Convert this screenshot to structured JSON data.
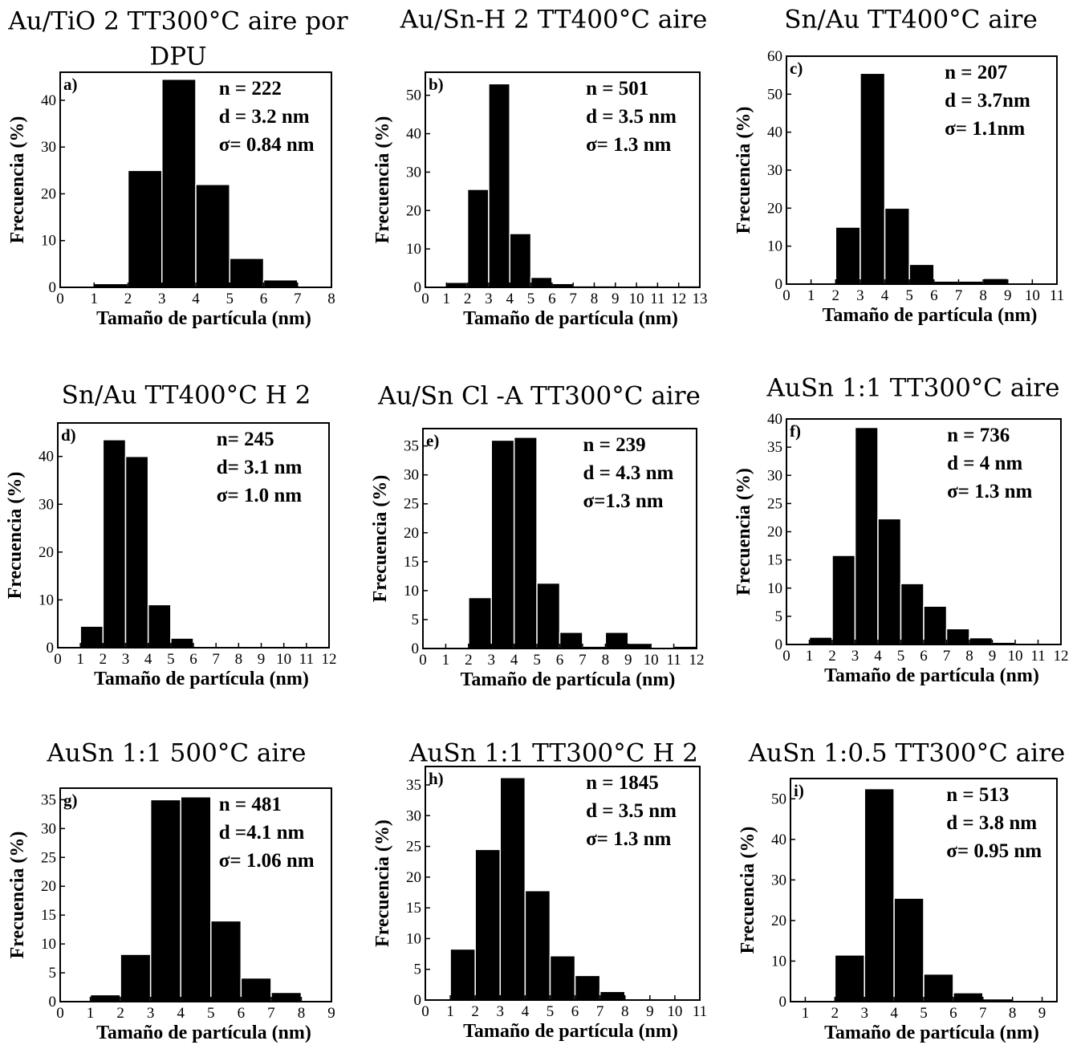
{
  "chart_data": [
    {
      "type": "bar",
      "title": "Au/TiO 2 TT300°C aire por DPU",
      "title_lines": [
        "Au/TiO 2 TT300°C aire por",
        "DPU"
      ],
      "panel": "a)",
      "stats": [
        "n = 222",
        "d = 3.2 nm",
        "σ= 0.84 nm"
      ],
      "xlabel": "Tamaño de partícula (nm)",
      "ylabel": "Frecuencia (%)",
      "xlim": [
        0,
        8
      ],
      "ylim": [
        0,
        46
      ],
      "xticks": [
        0,
        1,
        2,
        3,
        4,
        5,
        6,
        7,
        8
      ],
      "yticks": [
        0,
        10,
        20,
        30,
        40
      ],
      "x": [
        1.5,
        2.5,
        3.5,
        4.5,
        5.5,
        6.5
      ],
      "values": [
        0.8,
        25,
        44.5,
        22,
        6.2,
        1.6
      ]
    },
    {
      "type": "bar",
      "title": "Au/Sn-H 2 TT400°C aire",
      "title_lines": [
        "Au/Sn-H 2 TT400°C aire"
      ],
      "panel": "b)",
      "stats": [
        "n = 501",
        "d = 3.5 nm",
        "σ= 1.3 nm"
      ],
      "xlabel": "Tamaño de partícula (nm)",
      "ylabel": "Frecuencia (%)",
      "xlim": [
        0,
        13
      ],
      "ylim": [
        0,
        56
      ],
      "xticks": [
        0,
        1,
        2,
        3,
        4,
        5,
        6,
        7,
        8,
        9,
        10,
        11,
        12,
        13
      ],
      "yticks": [
        0,
        10,
        20,
        30,
        40,
        50
      ],
      "x": [
        1.5,
        2.5,
        3.5,
        4.5,
        5.5,
        6.5,
        7.5,
        8.5,
        9.5,
        10.5,
        11.5,
        12.5
      ],
      "values": [
        1.3,
        25.5,
        53,
        14,
        2.6,
        1,
        0.4,
        0.4,
        0.2,
        0.4,
        0.2,
        0.4
      ]
    },
    {
      "type": "bar",
      "title": "Sn/Au TT400°C aire",
      "title_lines": [
        "Sn/Au TT400°C aire"
      ],
      "panel": "c)",
      "stats": [
        "n = 207",
        "d = 3.7nm",
        "σ= 1.1nm"
      ],
      "xlabel": "Tamaño de partícula (nm)",
      "ylabel": "Frecuencia (%)",
      "xlim": [
        0,
        11
      ],
      "ylim": [
        0,
        60
      ],
      "xticks": [
        0,
        1,
        2,
        3,
        4,
        5,
        6,
        7,
        8,
        9,
        10,
        11
      ],
      "yticks": [
        0,
        10,
        20,
        30,
        40,
        50,
        60
      ],
      "x": [
        1.5,
        2.5,
        3.5,
        4.5,
        5.5,
        6.5,
        7.5,
        8.5,
        9.5
      ],
      "values": [
        0.3,
        15,
        55.5,
        20,
        5.2,
        0.8,
        0.8,
        1.5,
        0.3
      ]
    },
    {
      "type": "bar",
      "title": "Sn/Au TT400°C H 2",
      "title_lines": [
        "Sn/Au TT400°C H 2"
      ],
      "panel": "d)",
      "stats": [
        "n= 245",
        "d= 3.1 nm",
        "σ= 1.0 nm"
      ],
      "xlabel": "Tamaño de partícula (nm)",
      "ylabel": "Frecuencia (%)",
      "xlim": [
        0,
        12
      ],
      "ylim": [
        0,
        47
      ],
      "xticks": [
        0,
        1,
        2,
        3,
        4,
        5,
        6,
        7,
        8,
        9,
        10,
        11,
        12
      ],
      "yticks": [
        0,
        10,
        20,
        30,
        40
      ],
      "x": [
        1.5,
        2.5,
        3.5,
        4.5,
        5.5,
        9.5,
        10.5,
        11.5
      ],
      "values": [
        4.5,
        43.5,
        40,
        9,
        2,
        0.3,
        0.3,
        0.3
      ]
    },
    {
      "type": "bar",
      "title": "Au/Sn Cl -A TT300°C aire",
      "title_lines": [
        "Au/Sn Cl -A TT300°C aire"
      ],
      "panel": "e)",
      "stats": [
        "n = 239",
        "d = 4.3 nm",
        "σ=1.3 nm"
      ],
      "xlabel": "Tamaño de partícula (nm)",
      "ylabel": "Frecuencia (%)",
      "xlim": [
        0,
        12
      ],
      "ylim": [
        0,
        38
      ],
      "xticks": [
        0,
        1,
        2,
        3,
        4,
        5,
        6,
        7,
        8,
        9,
        10,
        11,
        12
      ],
      "yticks": [
        0,
        5,
        10,
        15,
        20,
        25,
        30,
        35
      ],
      "x": [
        0.5,
        1.5,
        2.5,
        3.5,
        4.5,
        5.5,
        6.5,
        7.5,
        8.5,
        9.5,
        10.5,
        11.5
      ],
      "values": [
        0.2,
        0.2,
        8.8,
        36,
        36.5,
        11.3,
        2.8,
        0.4,
        2.8,
        0.9,
        0.2,
        0.4
      ]
    },
    {
      "type": "bar",
      "title": "AuSn 1:1 TT300°C aire",
      "title_lines": [
        "AuSn 1:1 TT300°C aire"
      ],
      "panel": "f)",
      "stats": [
        "n = 736",
        "d = 4 nm",
        "σ= 1.3 nm"
      ],
      "xlabel": "Tamaño de partícula (nm)",
      "ylabel": "Frecuencia (%)",
      "xlim": [
        0,
        12
      ],
      "ylim": [
        0,
        40
      ],
      "xticks": [
        0,
        1,
        2,
        3,
        4,
        5,
        6,
        7,
        8,
        9,
        10,
        11,
        12
      ],
      "yticks": [
        0,
        5,
        10,
        15,
        20,
        25,
        30,
        35,
        40
      ],
      "x": [
        1.5,
        2.5,
        3.5,
        4.5,
        5.5,
        6.5,
        7.5,
        8.5,
        9.5,
        10.5,
        11.5
      ],
      "values": [
        1.3,
        15.8,
        38.5,
        22.3,
        10.8,
        6.8,
        2.8,
        1.2,
        0.4,
        0.2,
        0.2
      ]
    },
    {
      "type": "bar",
      "title": "AuSn 1:1 500°C aire",
      "title_lines": [
        "AuSn 1:1 500°C aire"
      ],
      "panel": "g)",
      "stats": [
        "n = 481",
        "d =4.1 nm",
        "σ= 1.06 nm"
      ],
      "xlabel": "Tamaño de partícula (nm)",
      "ylabel": "Frecuencia (%)",
      "xlim": [
        0,
        9
      ],
      "ylim": [
        0,
        37
      ],
      "xticks": [
        0,
        1,
        2,
        3,
        4,
        5,
        6,
        7,
        8,
        9
      ],
      "yticks": [
        0,
        5,
        10,
        15,
        20,
        25,
        30,
        35
      ],
      "x": [
        1.5,
        2.5,
        3.5,
        4.5,
        5.5,
        6.5,
        7.5,
        8.5
      ],
      "values": [
        1.2,
        8.2,
        35,
        35.5,
        14,
        4.1,
        1.6,
        0.2
      ]
    },
    {
      "type": "bar",
      "title": "AuSn 1:1 TT300°C H 2",
      "title_lines": [
        "AuSn 1:1 TT300°C H 2"
      ],
      "panel": "h)",
      "stats": [
        "n = 1845",
        "d = 3.5 nm",
        "σ= 1.3 nm"
      ],
      "xlabel": "Tamaño de partícula (nm)",
      "ylabel": "Frecuencia (%)",
      "xlim": [
        0,
        11
      ],
      "ylim": [
        0,
        38
      ],
      "xticks": [
        0,
        1,
        2,
        3,
        4,
        5,
        6,
        7,
        8,
        9,
        10,
        11
      ],
      "yticks": [
        0,
        5,
        10,
        15,
        20,
        25,
        30,
        35
      ],
      "x": [
        1.5,
        2.5,
        3.5,
        4.5,
        5.5,
        6.5,
        7.5,
        8.5,
        9.5,
        10.5
      ],
      "values": [
        8.3,
        24.5,
        36.2,
        17.8,
        7.2,
        4,
        1.4,
        0.2,
        0.1,
        0.1
      ]
    },
    {
      "type": "bar",
      "title": "AuSn 1:0.5 TT300°C aire",
      "title_lines": [
        "AuSn 1:0.5 TT300°C aire"
      ],
      "panel": "i)",
      "stats": [
        "n = 513",
        "d = 3.8 nm",
        "σ= 0.95 nm"
      ],
      "xlabel": "Tamaño de partícula (nm)",
      "ylabel": "Frecuencia (%)",
      "xlim": [
        0.5,
        9.5
      ],
      "ylim": [
        0,
        55
      ],
      "xticks": [
        1,
        2,
        3,
        4,
        5,
        6,
        7,
        8,
        9
      ],
      "yticks": [
        0,
        10,
        20,
        30,
        40,
        50
      ],
      "x": [
        2.5,
        3.5,
        4.5,
        5.5,
        6.5,
        7.5,
        8.5
      ],
      "values": [
        11.5,
        52.5,
        25.5,
        6.8,
        2.2,
        0.7,
        0.2
      ]
    }
  ]
}
